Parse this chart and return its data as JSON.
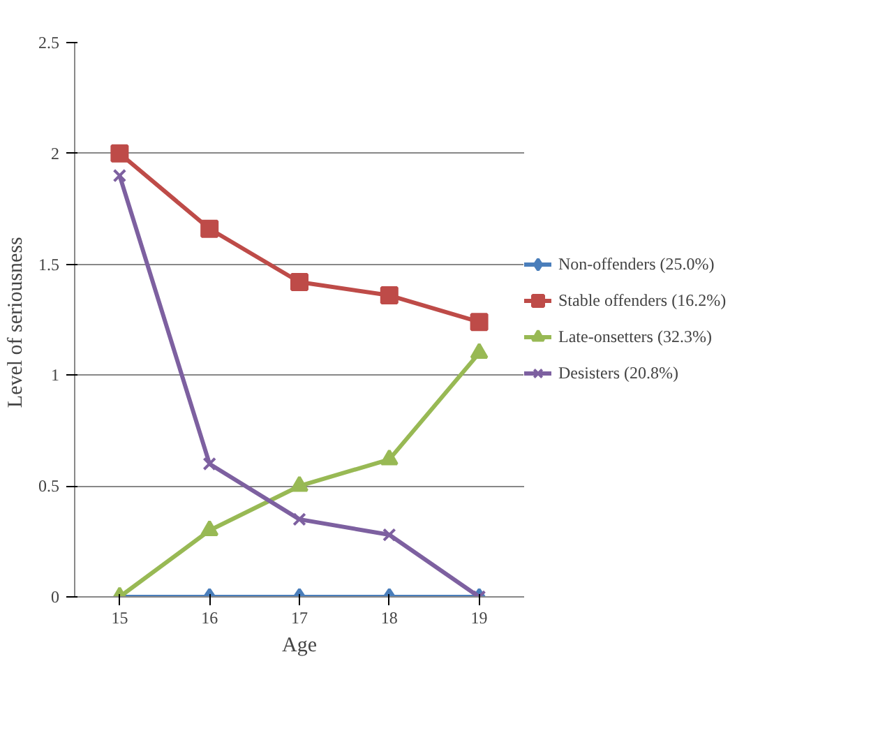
{
  "chart_data": {
    "type": "line",
    "xlabel": "Age",
    "ylabel": "Level  of seriousness",
    "categories": [
      "15",
      "16",
      "17",
      "18",
      "19"
    ],
    "ylim": [
      0,
      2.5
    ],
    "yticks": [
      0,
      0.5,
      1,
      1.5,
      2,
      2.5
    ],
    "grid": "y",
    "legend": "right",
    "line_style": "solid",
    "series": [
      {
        "name": "Non-offenders (25.0%)",
        "color": "#4a7ebb",
        "marker": "diamond",
        "values": [
          0,
          0,
          0,
          0,
          0
        ]
      },
      {
        "name": "Stable offenders (16.2%)",
        "color": "#be4b48",
        "marker": "square",
        "values": [
          2.0,
          1.66,
          1.42,
          1.36,
          1.24
        ]
      },
      {
        "name": "Late-onsetters (32.3%)",
        "color": "#98b954",
        "marker": "triangle",
        "values": [
          0,
          0.3,
          0.5,
          0.62,
          1.1
        ]
      },
      {
        "name": "Desisters (20.8%)",
        "color": "#7d60a0",
        "marker": "cross",
        "values": [
          1.9,
          0.6,
          0.35,
          0.28,
          0
        ]
      }
    ]
  }
}
